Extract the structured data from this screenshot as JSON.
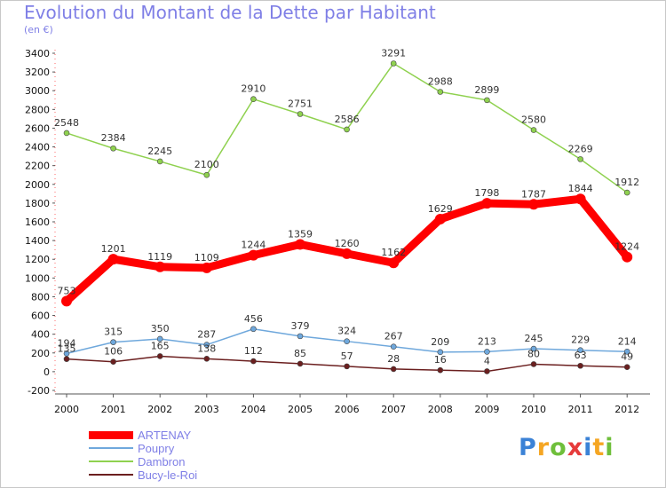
{
  "chart_data": {
    "type": "line",
    "title": "Evolution du Montant de la Dette par Habitant",
    "subtitle": "(en €)",
    "x": [
      "2000",
      "2001",
      "2002",
      "2003",
      "2004",
      "2005",
      "2006",
      "2007",
      "2008",
      "2009",
      "2010",
      "2011",
      "2012"
    ],
    "ylim": [
      -200,
      3400
    ],
    "yticks": [
      -200,
      0,
      200,
      400,
      600,
      800,
      1000,
      1200,
      1400,
      1600,
      1800,
      2000,
      2200,
      2400,
      2600,
      2800,
      3000,
      3200,
      3400
    ],
    "grid": false,
    "legend_position": "bottom-left",
    "series": [
      {
        "name": "ARTENAY",
        "color": "#ff0000",
        "values": [
          753,
          1201,
          1119,
          1109,
          1244,
          1359,
          1260,
          1162,
          1629,
          1798,
          1787,
          1844,
          1224
        ]
      },
      {
        "name": "Poupry",
        "color": "#6fa8dc",
        "values": [
          194,
          315,
          350,
          287,
          456,
          379,
          324,
          267,
          209,
          213,
          245,
          229,
          214
        ]
      },
      {
        "name": "Dambron",
        "color": "#8fd14f",
        "values": [
          2548,
          2384,
          2245,
          2100,
          2910,
          2751,
          2586,
          3291,
          2988,
          2899,
          2580,
          2269,
          1912
        ]
      },
      {
        "name": "Bucy-le-Roi",
        "color": "#6b1f1f",
        "values": [
          135,
          106,
          165,
          138,
          112,
          85,
          57,
          28,
          16,
          4,
          80,
          63,
          49
        ]
      }
    ]
  },
  "logo": {
    "letters": [
      "P",
      "r",
      "o",
      "x",
      "i",
      "t",
      "i"
    ],
    "colors": [
      "#3b82d6",
      "#f5a623",
      "#6fbf3b",
      "#e63b3b",
      "#3b82d6",
      "#f5a623",
      "#6fbf3b"
    ]
  }
}
